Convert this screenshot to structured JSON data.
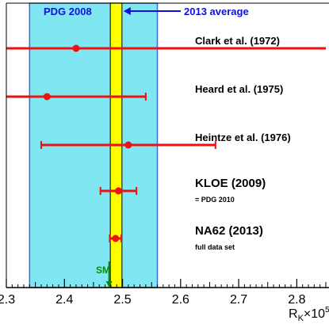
{
  "chart_data": {
    "type": "scatter",
    "title": "",
    "xlabel": "R",
    "xlabel_subscript": "K",
    "xlabel_suffix": "×10",
    "xlabel_exponent": "5",
    "xlim": [
      2.3,
      2.85
    ],
    "xticks": [
      2.3,
      2.4,
      2.5,
      2.6,
      2.7,
      2.8
    ],
    "xtick_labels": [
      "2.3",
      "2.4",
      "2.5",
      "2.6",
      "2.7",
      "2.8"
    ],
    "bands": [
      {
        "label": "PDG 2008",
        "low": 2.34,
        "high": 2.56,
        "color": "#7fe6f2"
      },
      {
        "label": "2013 average",
        "low": 2.479,
        "high": 2.499,
        "color": "#ffff00"
      }
    ],
    "sm": {
      "label": "SM",
      "value": 2.477,
      "color": "#0a8a0a"
    },
    "measurements": [
      {
        "name": "Clark et al. (1972)",
        "note": "",
        "value": 2.42,
        "err_low": 2.3,
        "err_high": 2.85
      },
      {
        "name": "Heard et al. (1975)",
        "note": "",
        "value": 2.37,
        "err_low": 2.3,
        "err_high": 2.54
      },
      {
        "name": "Heintze et al. (1976)",
        "note": "",
        "value": 2.51,
        "err_low": 2.36,
        "err_high": 2.66
      },
      {
        "name": "KLOE (2009)",
        "note": "= PDG 2010",
        "value": 2.493,
        "err_low": 2.462,
        "err_high": 2.524
      },
      {
        "name": "NA62 (2013)",
        "note": "full data set",
        "value": 2.488,
        "err_low": 2.478,
        "err_high": 2.498
      }
    ],
    "colors": {
      "measurement": "#ee1111",
      "band_edge": "#3a6fd0",
      "axis": "#000000",
      "band_label": "#1010dd"
    }
  }
}
